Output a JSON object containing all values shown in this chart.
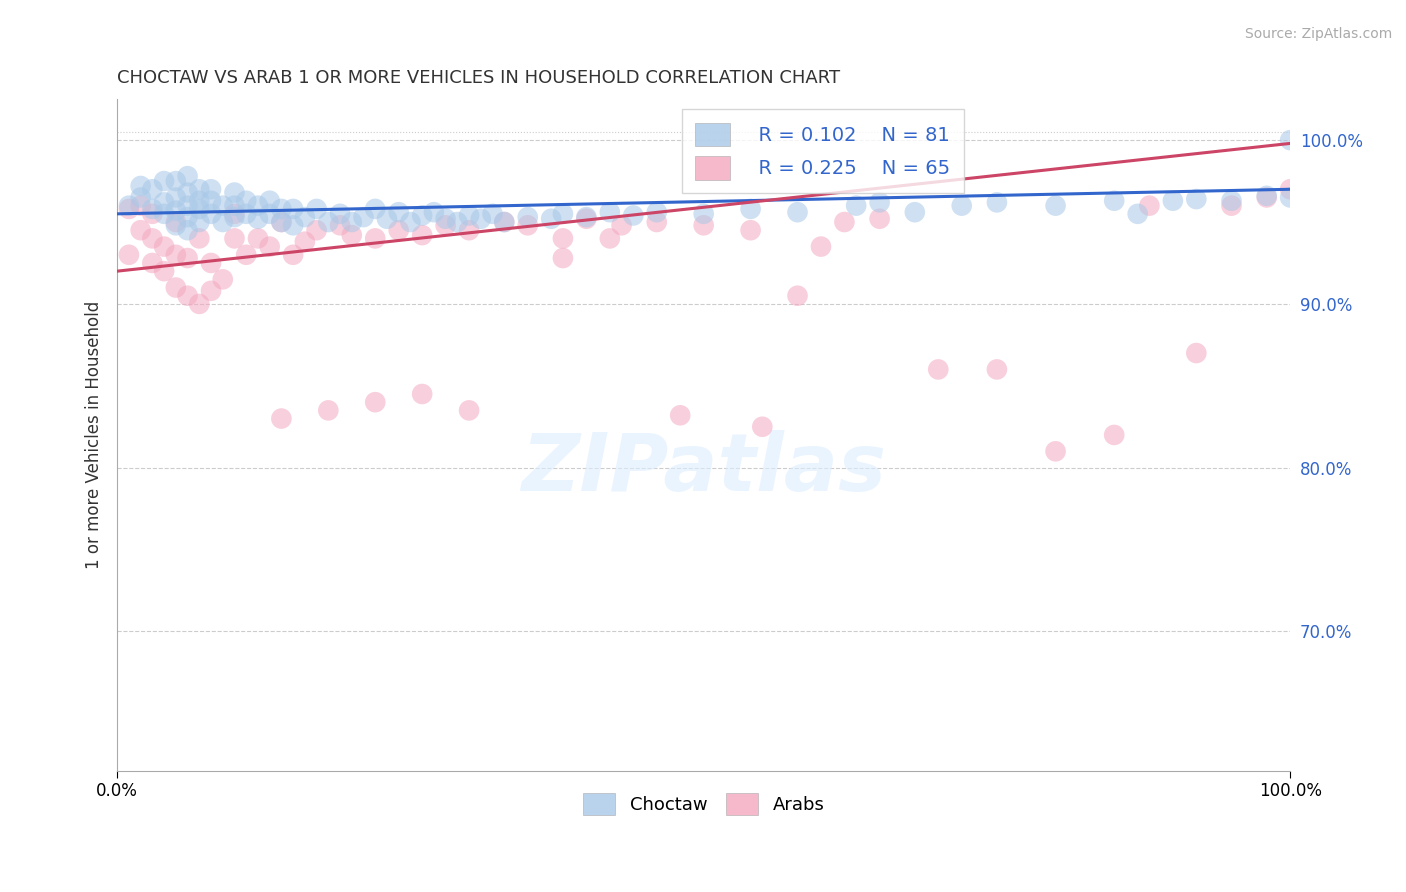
{
  "title": "CHOCTAW VS ARAB 1 OR MORE VEHICLES IN HOUSEHOLD CORRELATION CHART",
  "source": "Source: ZipAtlas.com",
  "ylabel": "1 or more Vehicles in Household",
  "xlim": [
    0.0,
    1.0
  ],
  "ylim": [
    0.615,
    1.025
  ],
  "yticks": [
    0.7,
    0.8,
    0.9,
    1.0
  ],
  "ytick_labels": [
    "70.0%",
    "80.0%",
    "90.0%",
    "100.0%"
  ],
  "choctaw_color": "#a8c8e8",
  "arab_color": "#f4a8c0",
  "trend_choctaw_color": "#3366cc",
  "trend_arab_color": "#cc4466",
  "watermark_text": "ZIPatlas",
  "legend_R_choctaw": "0.102",
  "legend_N_choctaw": "81",
  "legend_R_arab": "0.225",
  "legend_N_arab": "65",
  "choctaw_x": [
    0.01,
    0.02,
    0.02,
    0.03,
    0.03,
    0.04,
    0.04,
    0.04,
    0.05,
    0.05,
    0.05,
    0.05,
    0.06,
    0.06,
    0.06,
    0.06,
    0.06,
    0.07,
    0.07,
    0.07,
    0.07,
    0.08,
    0.08,
    0.08,
    0.09,
    0.09,
    0.1,
    0.1,
    0.1,
    0.11,
    0.11,
    0.12,
    0.12,
    0.13,
    0.13,
    0.14,
    0.14,
    0.15,
    0.15,
    0.16,
    0.17,
    0.18,
    0.19,
    0.2,
    0.21,
    0.22,
    0.23,
    0.24,
    0.25,
    0.26,
    0.27,
    0.28,
    0.29,
    0.3,
    0.31,
    0.32,
    0.33,
    0.35,
    0.37,
    0.38,
    0.4,
    0.42,
    0.44,
    0.46,
    0.5,
    0.54,
    0.58,
    0.63,
    0.65,
    0.68,
    0.72,
    0.75,
    0.8,
    0.85,
    0.87,
    0.9,
    0.92,
    0.95,
    0.98,
    1.0,
    1.0
  ],
  "choctaw_y": [
    0.96,
    0.965,
    0.972,
    0.958,
    0.97,
    0.955,
    0.962,
    0.975,
    0.948,
    0.957,
    0.965,
    0.975,
    0.945,
    0.953,
    0.96,
    0.968,
    0.978,
    0.95,
    0.958,
    0.963,
    0.97,
    0.955,
    0.963,
    0.97,
    0.95,
    0.96,
    0.953,
    0.96,
    0.968,
    0.955,
    0.963,
    0.952,
    0.96,
    0.955,
    0.963,
    0.95,
    0.958,
    0.948,
    0.958,
    0.953,
    0.958,
    0.95,
    0.955,
    0.95,
    0.953,
    0.958,
    0.952,
    0.956,
    0.95,
    0.954,
    0.956,
    0.952,
    0.95,
    0.954,
    0.952,
    0.955,
    0.95,
    0.953,
    0.952,
    0.955,
    0.953,
    0.956,
    0.954,
    0.956,
    0.955,
    0.958,
    0.956,
    0.96,
    0.962,
    0.956,
    0.96,
    0.962,
    0.96,
    0.963,
    0.955,
    0.963,
    0.964,
    0.963,
    0.966,
    0.965,
    1.0
  ],
  "arab_x": [
    0.01,
    0.01,
    0.02,
    0.02,
    0.03,
    0.03,
    0.03,
    0.04,
    0.04,
    0.05,
    0.05,
    0.05,
    0.06,
    0.06,
    0.07,
    0.07,
    0.08,
    0.08,
    0.09,
    0.1,
    0.1,
    0.11,
    0.12,
    0.13,
    0.14,
    0.15,
    0.16,
    0.17,
    0.19,
    0.2,
    0.22,
    0.24,
    0.26,
    0.28,
    0.3,
    0.33,
    0.35,
    0.38,
    0.4,
    0.43,
    0.46,
    0.5,
    0.54,
    0.58,
    0.62,
    0.65,
    0.7,
    0.75,
    0.8,
    0.85,
    0.88,
    0.92,
    0.95,
    0.98,
    1.0,
    0.55,
    0.6,
    0.38,
    0.42,
    0.48,
    0.14,
    0.18,
    0.22,
    0.26,
    0.3
  ],
  "arab_y": [
    0.958,
    0.93,
    0.945,
    0.96,
    0.925,
    0.94,
    0.955,
    0.92,
    0.935,
    0.91,
    0.93,
    0.95,
    0.905,
    0.928,
    0.9,
    0.94,
    0.908,
    0.925,
    0.915,
    0.94,
    0.955,
    0.93,
    0.94,
    0.935,
    0.95,
    0.93,
    0.938,
    0.945,
    0.948,
    0.942,
    0.94,
    0.945,
    0.942,
    0.948,
    0.945,
    0.95,
    0.948,
    0.94,
    0.952,
    0.948,
    0.95,
    0.948,
    0.945,
    0.905,
    0.95,
    0.952,
    0.86,
    0.86,
    0.81,
    0.82,
    0.96,
    0.87,
    0.96,
    0.965,
    0.97,
    0.825,
    0.935,
    0.928,
    0.94,
    0.832,
    0.83,
    0.835,
    0.84,
    0.845,
    0.835
  ]
}
